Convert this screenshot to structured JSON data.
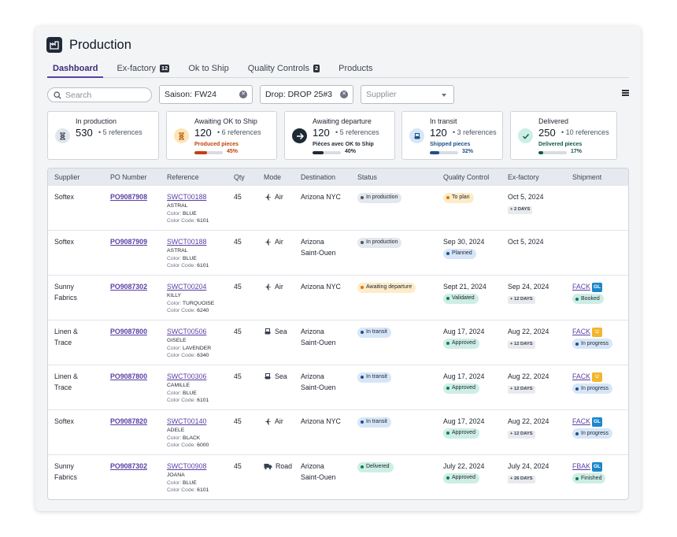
{
  "app": {
    "title": "Production"
  },
  "tabs": [
    {
      "label": "Dashboard",
      "count": ""
    },
    {
      "label": "Ex-factory",
      "count": "12"
    },
    {
      "label": "Ok to Ship",
      "count": ""
    },
    {
      "label": "Quality Controls",
      "count": "2"
    },
    {
      "label": "Products",
      "count": ""
    }
  ],
  "filters": {
    "search_placeholder": "Search",
    "season": "Saison: FW24",
    "drop": "Drop: DROP 25#3",
    "supplier_placeholder": "Supplier"
  },
  "stats": [
    {
      "label": "In production",
      "value": "530",
      "refs": "5 references",
      "icon": "hourglass-icon"
    },
    {
      "label": "Awaiting OK to Ship",
      "value": "120",
      "refs": "6 references",
      "sub": "Produced pieces",
      "pct": "45%",
      "progress": 0.45,
      "color": "#c2410c",
      "icon": "hourglass-icon"
    },
    {
      "label": "Awaiting departure",
      "value": "120",
      "refs": "5 references",
      "sub": "Pièces avec OK to Ship",
      "pct": "40%",
      "progress": 0.4,
      "color": "#1f2937",
      "icon": "arrow-right-icon"
    },
    {
      "label": "In transit",
      "value": "120",
      "refs": "3 references",
      "sub": "Shipped pieces",
      "pct": "32%",
      "progress": 0.32,
      "color": "#1e4f8a",
      "icon": "ship-icon"
    },
    {
      "label": "Delivered",
      "value": "250",
      "refs": "10 references",
      "sub": "Delivered pieces",
      "pct": "17%",
      "progress": 0.17,
      "color": "#0f5a4a",
      "icon": "check-icon"
    }
  ],
  "table": {
    "headers": [
      "Supplier",
      "PO Number",
      "Reference",
      "Qty",
      "Mode",
      "Destination",
      "Status",
      "Quality Control",
      "Ex-factory",
      "Shipment"
    ],
    "color_key": "Color:",
    "code_key": "Color Code:",
    "rows": [
      {
        "supplier": [
          "Softex",
          ""
        ],
        "po": "PO9087908",
        "ref": "SWCT00188",
        "name": "ASTRAL",
        "color": "BLUE",
        "code": "6101",
        "qty": "45",
        "mode": "Air",
        "dest": [
          "Arizona NYC",
          ""
        ],
        "status": "In production",
        "qc_date": "",
        "qc": "To plan",
        "exf": "Oct 5, 2024",
        "exf_chip": "+ 2 DAYS",
        "ship": "",
        "ship_badge": "",
        "ship_status": ""
      },
      {
        "supplier": [
          "Softex",
          ""
        ],
        "po": "PO9087909",
        "ref": "SWCT00188",
        "name": "ASTRAL",
        "color": "BLUE",
        "code": "6101",
        "qty": "45",
        "mode": "Air",
        "dest": [
          "Arizona",
          "Saint-Ouen"
        ],
        "status": "In production",
        "qc_date": "Sep 30, 2024",
        "qc": "Planned",
        "exf": "Oct 5, 2024",
        "exf_chip": "",
        "ship": "",
        "ship_badge": "",
        "ship_status": ""
      },
      {
        "supplier": [
          "Sunny",
          "Fabrics"
        ],
        "po": "PO9087302",
        "ref": "SWCT00204",
        "name": "KILLY",
        "color": "TURQUOISE",
        "code": "6240",
        "qty": "45",
        "mode": "Air",
        "dest": [
          "Arizona NYC",
          ""
        ],
        "status": "Awaiting departure",
        "qc_date": "Sept 21, 2024",
        "qc": "Validated",
        "exf": "Sep 24, 2024",
        "exf_chip": "+ 12 DAYS",
        "ship": "FACK",
        "ship_badge": "GL",
        "ship_status": "Booked"
      },
      {
        "supplier": [
          "Linen &",
          "Trace"
        ],
        "po": "PO9087800",
        "ref": "SWCT00506",
        "name": "GISELE",
        "color": "LAVENDER",
        "code": "6340",
        "qty": "45",
        "mode": "Sea",
        "dest": [
          "Arizona",
          "Saint-Ouen"
        ],
        "status": "In transit",
        "qc_date": "Aug 17, 2024",
        "qc": "Approved",
        "exf": "Aug 22, 2024",
        "exf_chip": "+ 12 DAYS",
        "ship": "FACK",
        "ship_badge": "",
        "ship_status": "In progress"
      },
      {
        "supplier": [
          "Linen &",
          "Trace"
        ],
        "po": "PO9087800",
        "ref": "SWCT00306",
        "name": "CAMILLE",
        "color": "BLUE",
        "code": "6101",
        "qty": "45",
        "mode": "Sea",
        "dest": [
          "Arizona",
          "Saint-Ouen"
        ],
        "status": "In transit",
        "qc_date": "Aug 17, 2024",
        "qc": "Approved",
        "exf": "Aug 22, 2024",
        "exf_chip": "+ 12 DAYS",
        "ship": "FACK",
        "ship_badge": "",
        "ship_status": "In progress"
      },
      {
        "supplier": [
          "Softex",
          ""
        ],
        "po": "PO9087820",
        "ref": "SWCT00140",
        "name": "ADELE",
        "color": "BLACK",
        "code": "6000",
        "qty": "45",
        "mode": "Air",
        "dest": [
          "Arizona NYC",
          ""
        ],
        "status": "In transit",
        "qc_date": "Aug 17, 2024",
        "qc": "Approved",
        "exf": "Aug 22, 2024",
        "exf_chip": "+ 12 DAYS",
        "ship": "FACK",
        "ship_badge": "GL",
        "ship_status": "In progress"
      },
      {
        "supplier": [
          "Sunny",
          "Fabrics"
        ],
        "po": "PO9087302",
        "ref": "SWCT00908",
        "name": "JOANA",
        "color": "BLUE",
        "code": "6101",
        "qty": "45",
        "mode": "Road",
        "dest": [
          "Arizona",
          "Saint-Ouen"
        ],
        "status": "Delivered",
        "qc_date": "July 22, 2024",
        "qc": "Approved",
        "exf": "July 24, 2024",
        "exf_chip": "+ 26 DAYS",
        "ship": "FBAK",
        "ship_badge": "GL",
        "ship_status": "Finished"
      }
    ]
  },
  "colors": {
    "accent": "#5b3fa5",
    "status_in_production": "#e3e7ee",
    "status_awaiting": "#fdecc8",
    "status_in_transit": "#d6e6f8",
    "status_delivered": "#cdeee4",
    "qc_approved": "#cdeee4",
    "qc_planned": "#d6e6f8",
    "qc_to_plan": "#fdecc8"
  }
}
